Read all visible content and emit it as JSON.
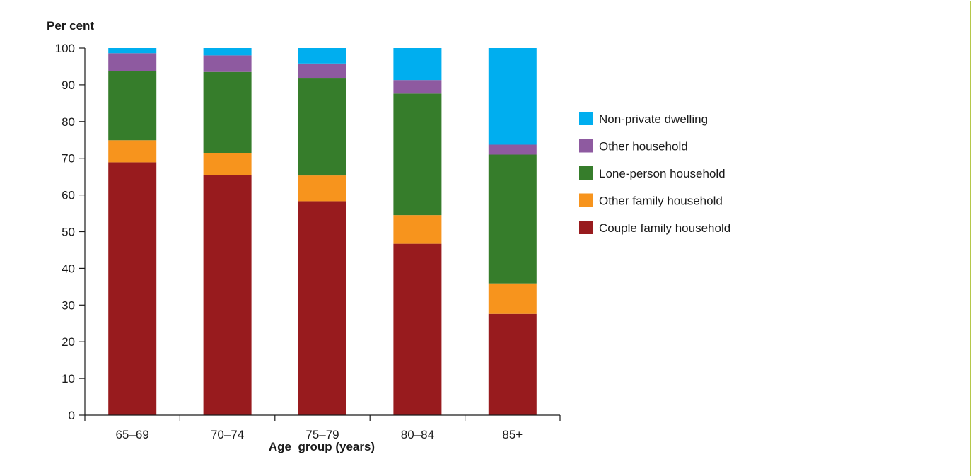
{
  "chart_data": {
    "type": "bar",
    "stacked": true,
    "ylabel": "Per cent",
    "xlabel": "Age  group (years)",
    "ylim": [
      0,
      100
    ],
    "yticks": [
      0,
      10,
      20,
      30,
      40,
      50,
      60,
      70,
      80,
      90,
      100
    ],
    "categories": [
      "65–69",
      "70–74",
      "75–79",
      "80–84",
      "85+"
    ],
    "legend_position": "right",
    "grid": false,
    "series": [
      {
        "name": "Couple family household",
        "color": "#981b1e",
        "values": [
          68.9,
          65.4,
          58.3,
          46.7,
          27.6
        ]
      },
      {
        "name": "Other family household",
        "color": "#f7941d",
        "values": [
          6.0,
          6.0,
          7.0,
          7.8,
          8.3
        ]
      },
      {
        "name": "Lone-person household",
        "color": "#367d2b",
        "values": [
          18.9,
          22.1,
          26.6,
          33.1,
          35.1
        ]
      },
      {
        "name": "Other household",
        "color": "#8e5aa0",
        "values": [
          4.8,
          4.5,
          3.9,
          3.7,
          2.7
        ]
      },
      {
        "name": "Non-private dwelling",
        "color": "#00aeef",
        "values": [
          1.4,
          2.0,
          4.2,
          8.7,
          26.3
        ]
      }
    ]
  }
}
